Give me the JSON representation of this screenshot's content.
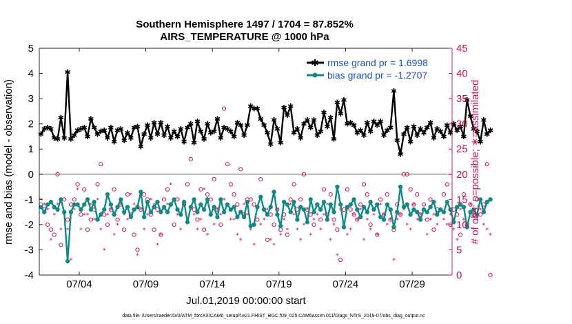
{
  "chart_data": {
    "type": "line",
    "title": "Southern Hemisphere 1497 / 1704 = 87.852%",
    "subtitle": "AIRS_TEMPERATURE @ 1000 hPa",
    "xlabel": "Jul.01,2019 00:00:00 start",
    "ylabel_left": "rmse and bias (model - observation)",
    "ylabel_right": "# of obs: o=possible; ∗=assimilated",
    "ylim_left": [
      -4,
      5
    ],
    "ylim_right": [
      0,
      45
    ],
    "xlim_days": [
      0,
      31
    ],
    "x_ticks": [
      {
        "day": 3,
        "label": "07/04"
      },
      {
        "day": 8,
        "label": "07/09"
      },
      {
        "day": 13,
        "label": "07/14"
      },
      {
        "day": 18,
        "label": "07/19"
      },
      {
        "day": 23,
        "label": "07/24"
      },
      {
        "day": 28,
        "label": "07/29"
      }
    ],
    "y_ticks_left": [
      "5",
      "4",
      "3",
      "2",
      "1",
      "0",
      "-1",
      "-2",
      "-3",
      "-4"
    ],
    "y_ticks_right": [
      "45",
      "40",
      "35",
      "30",
      "25",
      "20",
      "15",
      "10",
      "5",
      "0"
    ],
    "zero_line": 0,
    "legend": {
      "position": "top-right",
      "entries": [
        "rmse grand pr = 1.6998",
        "bias grand pr = -1.2707"
      ]
    },
    "colors": {
      "rmse": "#000000",
      "bias": "#0f8a86",
      "obs": "#d0105a",
      "zero": "#b0b0b0",
      "legend_text": "#1a4ed8"
    },
    "series": [
      {
        "name": "rmse",
        "start_day": 0.125,
        "step_days": 0.25,
        "values": [
          1.6,
          1.8,
          1.85,
          1.8,
          1.45,
          1.4,
          2.25,
          1.45,
          4.05,
          1.4,
          1.55,
          1.75,
          1.8,
          1.85,
          1.5,
          2.2,
          1.85,
          1.6,
          1.7,
          1.75,
          1.45,
          1.85,
          1.3,
          1.75,
          1.8,
          1.35,
          1.65,
          1.45,
          1.85,
          1.9,
          1.1,
          1.6,
          1.95,
          1.45,
          2.05,
          1.6,
          2.05,
          1.55,
          1.9,
          1.45,
          1.7,
          1.5,
          1.8,
          1.3,
          1.85,
          2.0,
          1.25,
          2.1,
          1.7,
          1.4,
          2.0,
          1.65,
          1.7,
          2.2,
          1.45,
          1.85,
          1.8,
          1.7,
          1.5,
          2.05,
          1.95,
          1.55,
          1.95,
          2.7,
          2.6,
          2.6,
          2.2,
          1.95,
          1.65,
          1.2,
          2.15,
          1.8,
          1.25,
          2.65,
          2.35,
          2.7,
          1.65,
          1.8,
          1.45,
          2.0,
          2.15,
          1.85,
          2.15,
          1.55,
          1.7,
          2.45,
          1.9,
          2.25,
          1.4,
          2.85,
          2.4,
          2.95,
          2.0,
          2.05,
          1.95,
          1.65,
          1.75,
          1.55,
          2.05,
          1.7,
          2.1,
          1.95,
          2.1,
          1.55,
          1.75,
          1.85,
          3.3,
          1.35,
          0.8,
          1.6,
          1.85,
          1.3,
          1.9,
          1.55,
          1.8,
          1.65,
          1.85,
          2.05,
          1.45,
          1.8,
          1.7,
          1.5,
          1.95,
          1.65,
          2.0,
          1.75,
          1.9,
          1.5,
          2.95,
          2.3,
          1.8,
          1.7,
          1.3,
          2.15,
          1.6,
          1.75
        ]
      },
      {
        "name": "bias",
        "start_day": 0.125,
        "step_days": 0.25,
        "values": [
          -1.3,
          -1.5,
          -1.2,
          -1.1,
          -1.3,
          -1.4,
          -1.0,
          -1.5,
          -3.45,
          -1.5,
          -1.2,
          -1.2,
          -1.4,
          -1.2,
          -1.0,
          -1.4,
          -1.1,
          -1.8,
          -1.6,
          -1.4,
          -0.8,
          -1.2,
          -1.6,
          -1.3,
          -1.0,
          -1.5,
          -1.3,
          -1.7,
          -1.4,
          -1.3,
          -0.7,
          -1.7,
          -1.1,
          -1.5,
          -1.3,
          -1.1,
          -1.5,
          -1.3,
          -1.5,
          -1.2,
          -1.0,
          -1.4,
          -1.6,
          -1.1,
          -1.9,
          -1.3,
          -1.0,
          -1.5,
          -1.2,
          -1.4,
          -1.0,
          -1.6,
          -1.3,
          -1.7,
          -1.0,
          -1.5,
          -1.2,
          -1.4,
          -1.3,
          -1.7,
          -1.5,
          -1.7,
          -1.1,
          -2.05,
          -2.0,
          -1.3,
          -0.9,
          -1.4,
          -1.6,
          -1.3,
          -0.7,
          -1.6,
          -2.05,
          -1.1,
          -1.2,
          -1.5,
          -1.1,
          -1.8,
          -1.3,
          -1.4,
          -1.9,
          -1.0,
          -1.5,
          -1.2,
          -1.4,
          -1.1,
          -1.8,
          -1.2,
          -1.5,
          -0.5,
          -1.2,
          -2.1,
          -1.3,
          -1.2,
          -1.0,
          -1.4,
          -1.7,
          -1.3,
          -1.5,
          -1.1,
          -1.4,
          -1.2,
          -1.7,
          -1.8,
          -1.2,
          -1.4,
          -2.1,
          -1.5,
          -0.5,
          -1.3,
          -1.2,
          -1.6,
          -1.4,
          -1.5,
          -1.8,
          -1.4,
          -1.5,
          -1.3,
          -1.1,
          -1.6,
          -1.4,
          -1.5,
          -1.1,
          -1.4,
          -1.9,
          -1.3,
          -1.2,
          -1.3,
          -2.1,
          -1.5,
          -1.4,
          -1.6,
          -1.0,
          -1.5,
          -1.1,
          -1.0
        ]
      },
      {
        "name": "possible_obs",
        "start_day": 0.125,
        "step_days": 0.25,
        "values": [
          14,
          13,
          10,
          9,
          8,
          20,
          6,
          15,
          11,
          14,
          15,
          18,
          12,
          17,
          9,
          11,
          13,
          18,
          22,
          12,
          10,
          13,
          17,
          11,
          14,
          9,
          16,
          12,
          8,
          5,
          13,
          16,
          15,
          12,
          9,
          13,
          8,
          15,
          17,
          14,
          10,
          15,
          12,
          14,
          18,
          23,
          13,
          11,
          17,
          9,
          16,
          15,
          19,
          13,
          10,
          33,
          22,
          18,
          16,
          14,
          21,
          12,
          15,
          15,
          14,
          11,
          19,
          13,
          7,
          12,
          10,
          13,
          9,
          12,
          8,
          15,
          18,
          13,
          15,
          20,
          13,
          12,
          10,
          14,
          11,
          17,
          12,
          16,
          11,
          9,
          3,
          13,
          17,
          13,
          12,
          11,
          14,
          18,
          16,
          10,
          13,
          8,
          15,
          12,
          16,
          11,
          9,
          14,
          12,
          20,
          20,
          17,
          14,
          16,
          12,
          14,
          11,
          15,
          9,
          13,
          13,
          16,
          18,
          10,
          13,
          12,
          8,
          16,
          10,
          14,
          12,
          15,
          12,
          14,
          22,
          0
        ]
      },
      {
        "name": "assimilated_obs",
        "start_day": 0.125,
        "step_days": 0.25,
        "values": [
          15,
          14,
          13,
          7,
          12,
          14,
          9,
          12,
          9,
          3,
          13,
          17,
          9,
          12,
          12,
          14,
          11,
          15,
          9,
          5,
          12,
          13,
          8,
          10,
          14,
          12,
          11,
          16,
          14,
          4,
          13,
          9,
          12,
          15,
          14,
          6,
          8,
          13,
          14,
          18,
          15,
          12,
          9,
          14,
          29,
          13,
          12,
          9,
          11,
          17,
          8,
          12,
          10,
          13,
          12,
          15,
          14,
          11,
          11,
          8,
          7,
          14,
          12,
          9,
          6,
          13,
          10,
          11,
          13,
          7,
          6,
          13,
          8,
          11,
          9,
          14,
          12,
          9,
          7,
          10,
          13,
          8,
          11,
          12,
          9,
          12,
          14,
          7,
          10,
          4,
          13,
          10,
          8,
          9,
          12,
          11,
          13,
          7,
          11,
          9,
          12,
          8,
          14,
          12,
          10,
          11,
          3,
          11,
          12,
          13,
          10,
          9,
          14,
          11,
          12,
          13,
          8,
          11,
          12,
          10,
          13,
          11,
          10,
          12,
          9,
          7,
          13,
          11,
          10,
          14,
          12,
          11,
          13,
          10,
          9,
          8
        ]
      }
    ]
  },
  "footer": {
    "data_file": "data file: /Users/raeder/DAI/ATM_forcXX/CAM6_setup/f.e21.FHIST_BGC.f09_025.CAM6assim.011/Diags_NTrS_2019-07/obs_diag_output.nc"
  }
}
